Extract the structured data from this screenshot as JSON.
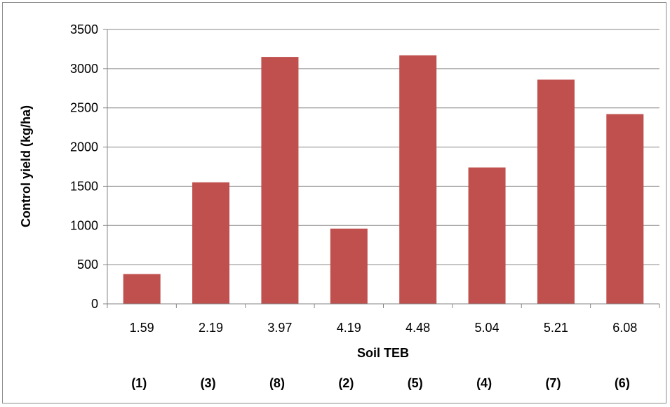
{
  "chart_data": {
    "type": "bar",
    "categories": [
      "1.59",
      "2.19",
      "3.97",
      "4.19",
      "4.48",
      "5.04",
      "5.21",
      "6.08"
    ],
    "values": [
      380,
      1550,
      3150,
      960,
      3170,
      1740,
      2860,
      2420
    ],
    "site_labels": [
      "(1)",
      "(3)",
      "(8)",
      "(2)",
      "(5)",
      "(4)",
      "(7)",
      "(6)"
    ],
    "xlabel": "Soil TEB",
    "ylabel": "Control yield (kg/ha)",
    "ylim": [
      0,
      3500
    ],
    "yticks": [
      0,
      500,
      1000,
      1500,
      2000,
      2500,
      3000,
      3500
    ],
    "grid": true,
    "bar_color": "#c0504d",
    "grid_color": "#868686"
  }
}
